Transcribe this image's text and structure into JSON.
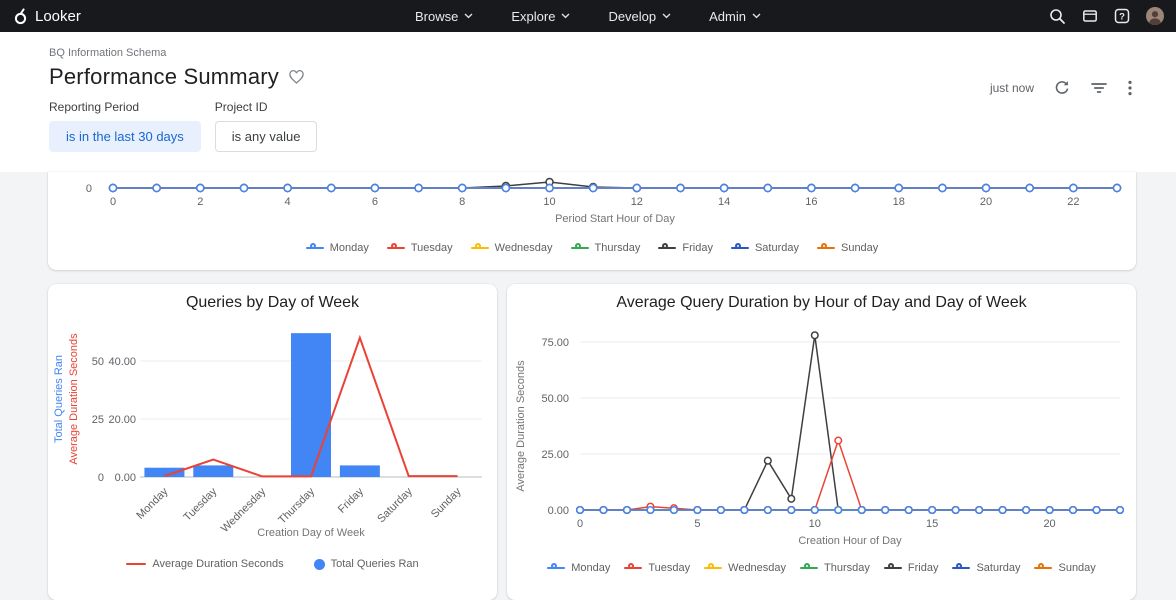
{
  "nav": {
    "brand": "Looker",
    "menus": [
      {
        "label": "Browse"
      },
      {
        "label": "Explore"
      },
      {
        "label": "Develop"
      },
      {
        "label": "Admin"
      }
    ]
  },
  "header": {
    "breadcrumb": "BQ Information Schema",
    "title": "Performance Summary",
    "updated": "just now"
  },
  "filters": [
    {
      "label": "Reporting Period",
      "value": "is in the last 30 days"
    },
    {
      "label": "Project ID",
      "value": "is any value"
    }
  ],
  "days": [
    {
      "label": "Monday",
      "color": "#4285f4"
    },
    {
      "label": "Tuesday",
      "color": "#ea4335"
    },
    {
      "label": "Wednesday",
      "color": "#fbbc04"
    },
    {
      "label": "Thursday",
      "color": "#34a853"
    },
    {
      "label": "Friday",
      "color": "#3c4043"
    },
    {
      "label": "Saturday",
      "color": "#2a56c6"
    },
    {
      "label": "Sunday",
      "color": "#e8710a"
    }
  ],
  "colors": {
    "nav_bg": "#17191d",
    "chip_bg": "#e8f0fe",
    "chip_text": "#1967d2",
    "bar_blue": "#4285f4",
    "line_red": "#ea4335"
  },
  "chart_data": [
    {
      "id": "queries-by-hour-clipped",
      "type": "line",
      "title": "",
      "xlabel": "Period Start Hour of Day",
      "yticks": [
        "0"
      ],
      "xticks": [
        0,
        2,
        4,
        6,
        8,
        10,
        12,
        14,
        16,
        18,
        20,
        22
      ],
      "series": [
        {
          "name": "Monday",
          "color": "#4285f4",
          "values": [
            0,
            0,
            0,
            0,
            0,
            0,
            0,
            0,
            0,
            0,
            0,
            0,
            0,
            0,
            0,
            0,
            0,
            0,
            0,
            0,
            0,
            0,
            0,
            0
          ]
        },
        {
          "name": "Tuesday",
          "color": "#ea4335",
          "values": [
            0,
            0,
            0,
            0,
            0,
            0,
            0,
            0,
            0,
            0,
            0,
            0,
            0,
            0,
            0,
            0,
            0,
            0,
            0,
            0,
            0,
            0,
            0,
            0
          ]
        },
        {
          "name": "Wednesday",
          "color": "#fbbc04",
          "values": [
            0,
            0,
            0,
            0,
            0,
            0,
            0,
            0,
            0,
            0,
            0,
            0,
            0,
            0,
            0,
            0,
            0,
            0,
            0,
            0,
            0,
            0,
            0,
            0
          ]
        },
        {
          "name": "Thursday",
          "color": "#34a853",
          "values": [
            0,
            0,
            0,
            0,
            0,
            0,
            0,
            0,
            0,
            0,
            0,
            0,
            0,
            0,
            0,
            0,
            0,
            0,
            0,
            0,
            0,
            0,
            0,
            0
          ]
        },
        {
          "name": "Friday",
          "color": "#3c4043",
          "values": [
            0,
            0,
            0,
            0,
            0,
            0,
            0,
            0,
            0,
            0.8,
            2.4,
            0.4,
            0,
            0,
            0,
            0,
            0,
            0,
            0,
            0,
            0,
            0,
            0,
            0
          ]
        },
        {
          "name": "Saturday",
          "color": "#2a56c6",
          "values": [
            0,
            0,
            0,
            0,
            0,
            0,
            0,
            0,
            0,
            0,
            0,
            0,
            0,
            0,
            0,
            0,
            0,
            0,
            0,
            0,
            0,
            0,
            0,
            0
          ]
        },
        {
          "name": "Sunday",
          "color": "#e8710a",
          "values": [
            0,
            0,
            0,
            0,
            0,
            0,
            0,
            0,
            0,
            0,
            0,
            0,
            0,
            0,
            0,
            0,
            0,
            0,
            0,
            0,
            0,
            0,
            0,
            0
          ]
        }
      ],
      "legend_position": "bottom"
    },
    {
      "id": "queries-by-day-of-week",
      "type": "bar+line",
      "title": "Queries by Day of Week",
      "xlabel": "Creation Day of Week",
      "categories": [
        "Monday",
        "Tuesday",
        "Wednesday",
        "Thursday",
        "Friday",
        "Saturday",
        "Sunday"
      ],
      "y_left": {
        "label": "Total Queries Ran",
        "color": "#4285f4",
        "ticks": [
          0,
          25,
          50
        ]
      },
      "y_right": {
        "label": "Average Duration Seconds",
        "color": "#ea4335",
        "ticks": [
          "0.00",
          "20.00",
          "40.00"
        ]
      },
      "bars": {
        "name": "Total Queries Ran",
        "color": "#4285f4",
        "values": [
          4,
          5,
          0,
          62,
          5,
          0,
          0
        ]
      },
      "line": {
        "name": "Average Duration Seconds",
        "color": "#ea4335",
        "values": [
          0.3,
          6,
          0.2,
          0.2,
          48,
          0.3,
          0.3
        ]
      },
      "legend": [
        {
          "label": "Average Duration Seconds",
          "color": "#ea4335",
          "type": "line"
        },
        {
          "label": "Total Queries Ran",
          "color": "#4285f4",
          "type": "dot"
        }
      ],
      "legend_position": "bottom"
    },
    {
      "id": "avg-duration-by-hour-and-day",
      "type": "line",
      "title": "Average Query Duration by Hour of Day and Day of Week",
      "xlabel": "Creation Hour of Day",
      "ylabel": "Average Duration Seconds",
      "yticks": [
        {
          "v": 0,
          "label": "0.00"
        },
        {
          "v": 25,
          "label": "25.00"
        },
        {
          "v": 50,
          "label": "50.00"
        },
        {
          "v": 75,
          "label": "75.00"
        }
      ],
      "xticks": [
        0,
        5,
        10,
        15,
        20
      ],
      "ylim": [
        0,
        80
      ],
      "series": [
        {
          "name": "Monday",
          "color": "#4285f4",
          "values": [
            0,
            0,
            0,
            0,
            0,
            0,
            0,
            0,
            0,
            0,
            0,
            0,
            0,
            0,
            0,
            0,
            0,
            0,
            0,
            0,
            0,
            0,
            0,
            0
          ]
        },
        {
          "name": "Tuesday",
          "color": "#ea4335",
          "values": [
            0,
            0,
            0,
            1.5,
            0.8,
            0,
            0,
            0,
            0,
            0,
            0,
            31,
            0,
            0,
            0,
            0,
            0,
            0,
            0,
            0,
            0,
            0,
            0,
            0
          ]
        },
        {
          "name": "Wednesday",
          "color": "#fbbc04",
          "values": [
            0,
            0,
            0,
            0,
            0,
            0,
            0,
            0,
            0,
            0,
            0,
            0,
            0,
            0,
            0,
            0,
            0,
            0,
            0,
            0,
            0,
            0,
            0,
            0
          ]
        },
        {
          "name": "Thursday",
          "color": "#34a853",
          "values": [
            0,
            0,
            0,
            0,
            0,
            0,
            0,
            0,
            0,
            0,
            0,
            0,
            0,
            0,
            0,
            0,
            0,
            0,
            0,
            0,
            0,
            0,
            0,
            0
          ]
        },
        {
          "name": "Friday",
          "color": "#3c4043",
          "values": [
            0,
            0,
            0,
            0,
            0,
            0,
            0,
            0,
            22,
            5,
            78,
            0,
            0,
            0,
            0,
            0,
            0,
            0,
            0,
            0,
            0,
            0,
            0,
            0
          ]
        },
        {
          "name": "Saturday",
          "color": "#2a56c6",
          "values": [
            0,
            0,
            0,
            0,
            0,
            0,
            0,
            0,
            0,
            0,
            0,
            0,
            0,
            0,
            0,
            0,
            0,
            0,
            0,
            0,
            0,
            0,
            0,
            0
          ]
        },
        {
          "name": "Sunday",
          "color": "#e8710a",
          "values": [
            0,
            0,
            0,
            0,
            0,
            0,
            0,
            0,
            0,
            0,
            0,
            0,
            0,
            0,
            0,
            0,
            0,
            0,
            0,
            0,
            0,
            0,
            0,
            0
          ]
        }
      ],
      "legend_position": "bottom"
    }
  ]
}
